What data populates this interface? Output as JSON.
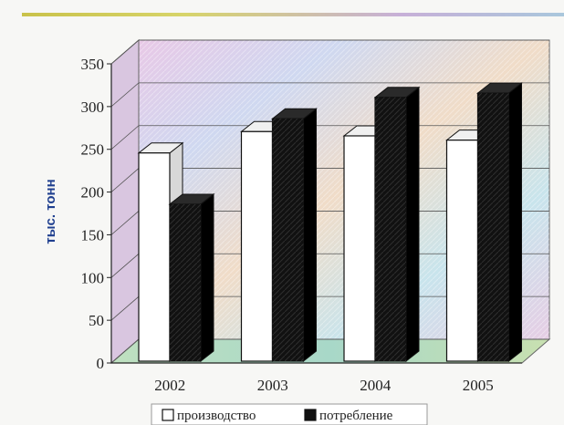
{
  "chart_data": {
    "type": "bar",
    "categories": [
      "2002",
      "2003",
      "2004",
      "2005"
    ],
    "series": [
      {
        "name": "производство",
        "values": [
          250,
          275,
          270,
          265
        ],
        "color": "#ffffff"
      },
      {
        "name": "потребление",
        "values": [
          190,
          290,
          315,
          320
        ],
        "color": "#111111"
      }
    ],
    "ylabel": "тыс. тонн",
    "xlabel": "",
    "ylim": [
      0,
      350
    ],
    "yticks": [
      0,
      50,
      100,
      150,
      200,
      250,
      300,
      350
    ],
    "grid": true,
    "legend_position": "bottom",
    "style": "3d-column"
  }
}
